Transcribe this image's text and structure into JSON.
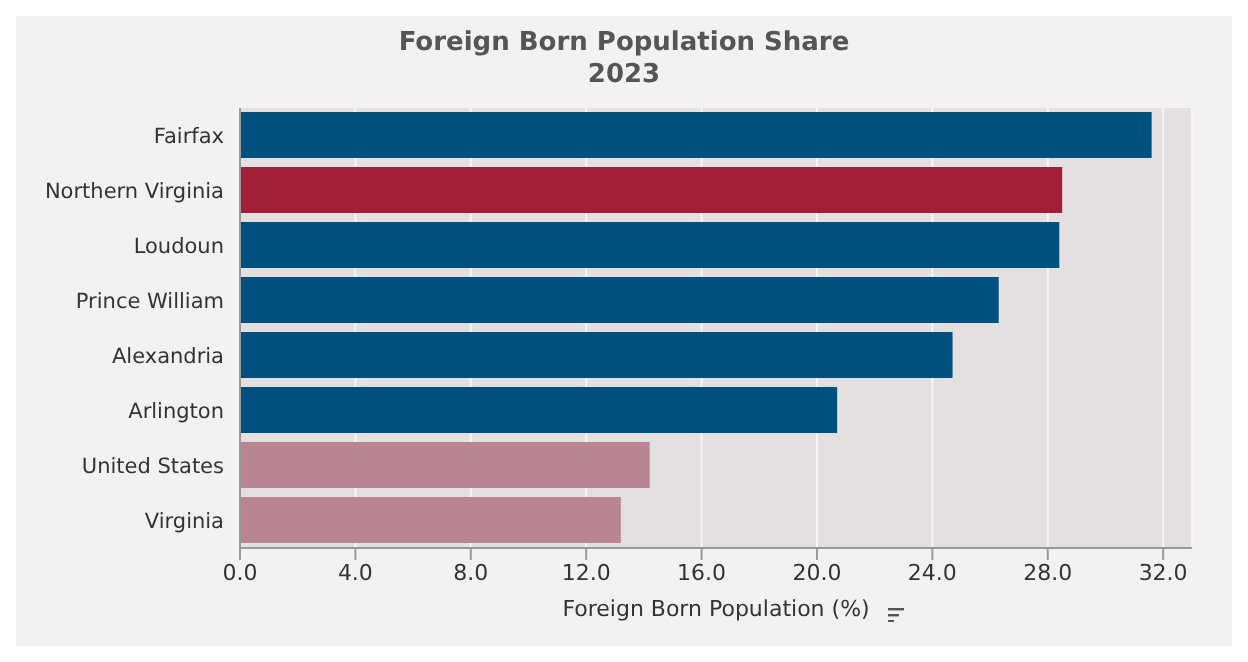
{
  "chart_data": {
    "type": "bar",
    "orientation": "horizontal",
    "title": "Foreign Born Population Share",
    "subtitle": "2023",
    "xlabel": "Foreign Born Population (%)",
    "categories": [
      "Fairfax",
      "Northern Virginia",
      "Loudoun",
      "Prince William",
      "Alexandria",
      "Arlington",
      "United States",
      "Virginia"
    ],
    "values": [
      31.6,
      28.5,
      28.4,
      26.3,
      24.7,
      20.7,
      14.2,
      13.2
    ],
    "colors": [
      "#00507f",
      "#a11f36",
      "#00507f",
      "#00507f",
      "#00507f",
      "#00507f",
      "#b98592",
      "#b98592"
    ],
    "xlim": [
      0,
      33
    ],
    "xticks": [
      {
        "value": 0,
        "label": "0.0"
      },
      {
        "value": 4,
        "label": "4.0"
      },
      {
        "value": 8,
        "label": "8.0"
      },
      {
        "value": 12,
        "label": "12.0"
      },
      {
        "value": 16,
        "label": "16.0"
      },
      {
        "value": 20,
        "label": "20.0"
      },
      {
        "value": 24,
        "label": "24.0"
      },
      {
        "value": 28,
        "label": "28.0"
      },
      {
        "value": 32,
        "label": "32.0"
      }
    ],
    "grid": "x",
    "legend": false
  }
}
